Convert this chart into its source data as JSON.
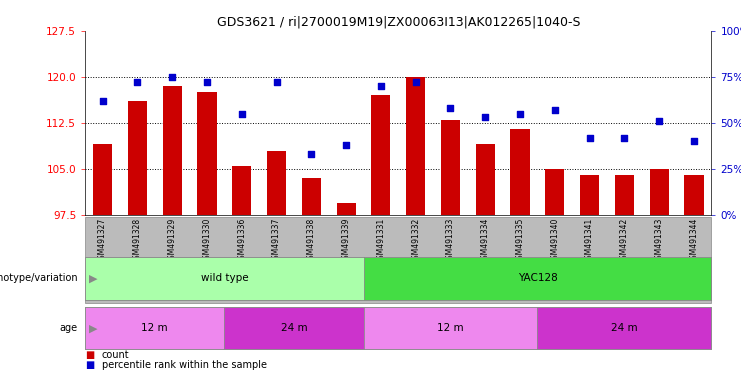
{
  "title": "GDS3621 / ri|2700019M19|ZX00063I13|AK012265|1040-S",
  "samples": [
    "GSM491327",
    "GSM491328",
    "GSM491329",
    "GSM491330",
    "GSM491336",
    "GSM491337",
    "GSM491338",
    "GSM491339",
    "GSM491331",
    "GSM491332",
    "GSM491333",
    "GSM491334",
    "GSM491335",
    "GSM491340",
    "GSM491341",
    "GSM491342",
    "GSM491343",
    "GSM491344"
  ],
  "bar_values": [
    109.0,
    116.0,
    118.5,
    117.5,
    105.5,
    108.0,
    103.5,
    99.5,
    117.0,
    120.0,
    113.0,
    109.0,
    111.5,
    105.0,
    104.0,
    104.0,
    105.0,
    104.0
  ],
  "dot_values": [
    62,
    72,
    75,
    72,
    55,
    72,
    33,
    38,
    70,
    72,
    58,
    53,
    55,
    57,
    42,
    42,
    51,
    40
  ],
  "bar_color": "#cc0000",
  "dot_color": "#0000cc",
  "ylim_left": [
    97.5,
    127.5
  ],
  "ylim_right": [
    0,
    100
  ],
  "yticks_left": [
    97.5,
    105.0,
    112.5,
    120.0,
    127.5
  ],
  "yticks_right": [
    0,
    25,
    50,
    75,
    100
  ],
  "grid_lines": [
    105.0,
    112.5,
    120.0
  ],
  "title_fontsize": 9,
  "genotype_groups": [
    {
      "label": "wild type",
      "start": 0,
      "end": 8,
      "color": "#aaffaa"
    },
    {
      "label": "YAC128",
      "start": 8,
      "end": 18,
      "color": "#44dd44"
    }
  ],
  "age_groups": [
    {
      "label": "12 m",
      "start": 0,
      "end": 4,
      "color": "#ee88ee"
    },
    {
      "label": "24 m",
      "start": 4,
      "end": 8,
      "color": "#cc33cc"
    },
    {
      "label": "12 m",
      "start": 8,
      "end": 13,
      "color": "#ee88ee"
    },
    {
      "label": "24 m",
      "start": 13,
      "end": 18,
      "color": "#cc33cc"
    }
  ],
  "legend_count_color": "#cc0000",
  "legend_dot_color": "#0000cc",
  "xtick_bg": "#bbbbbb",
  "left_label_geno": "genotype/variation",
  "left_label_age": "age",
  "arrow_color": "#888888"
}
